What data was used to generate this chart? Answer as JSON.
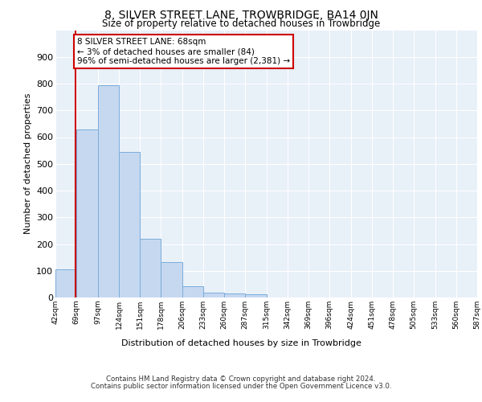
{
  "title": "8, SILVER STREET LANE, TROWBRIDGE, BA14 0JN",
  "subtitle": "Size of property relative to detached houses in Trowbridge",
  "xlabel": "Distribution of detached houses by size in Trowbridge",
  "ylabel": "Number of detached properties",
  "bar_color": "#c5d8f0",
  "bar_edge_color": "#7aaddb",
  "background_color": "#e8f0f8",
  "bins": [
    42,
    69,
    97,
    124,
    151,
    178,
    206,
    233,
    260,
    287,
    315,
    342,
    369,
    396,
    424,
    451,
    478,
    505,
    533,
    560,
    587
  ],
  "values": [
    105,
    630,
    793,
    545,
    220,
    133,
    43,
    18,
    15,
    12,
    0,
    0,
    0,
    0,
    0,
    0,
    0,
    0,
    0,
    0
  ],
  "property_size": 68,
  "vline_color": "#cc0000",
  "annotation_text": "8 SILVER STREET LANE: 68sqm\n← 3% of detached houses are smaller (84)\n96% of semi-detached houses are larger (2,381) →",
  "annotation_box_color": "#ffffff",
  "annotation_box_edge": "#cc0000",
  "ylim": [
    0,
    1000
  ],
  "yticks": [
    0,
    100,
    200,
    300,
    400,
    500,
    600,
    700,
    800,
    900,
    1000
  ],
  "footer_line1": "Contains HM Land Registry data © Crown copyright and database right 2024.",
  "footer_line2": "Contains public sector information licensed under the Open Government Licence v3.0."
}
